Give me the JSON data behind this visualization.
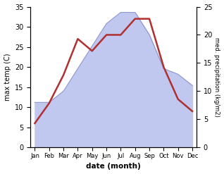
{
  "months": [
    "Jan",
    "Feb",
    "Mar",
    "Apr",
    "May",
    "Jun",
    "Jul",
    "Aug",
    "Sep",
    "Oct",
    "Nov",
    "Dec"
  ],
  "temperature": [
    6,
    11,
    18,
    27,
    24,
    28,
    28,
    32,
    32,
    20,
    12,
    9
  ],
  "precipitation": [
    8,
    8,
    10,
    14,
    18,
    22,
    24,
    24,
    20,
    14,
    13,
    11
  ],
  "temp_color": "#b03030",
  "precip_fill_color": "#c0c8f0",
  "precip_edge_color": "#9099cc",
  "temp_ylim": [
    0,
    35
  ],
  "precip_ylim": [
    0,
    25
  ],
  "temp_yticks": [
    0,
    5,
    10,
    15,
    20,
    25,
    30,
    35
  ],
  "precip_yticks": [
    0,
    5,
    10,
    15,
    20,
    25
  ],
  "ylabel_left": "max temp (C)",
  "ylabel_right": "med. precipitation (kg/m2)",
  "xlabel": "date (month)",
  "background_color": "#ffffff"
}
